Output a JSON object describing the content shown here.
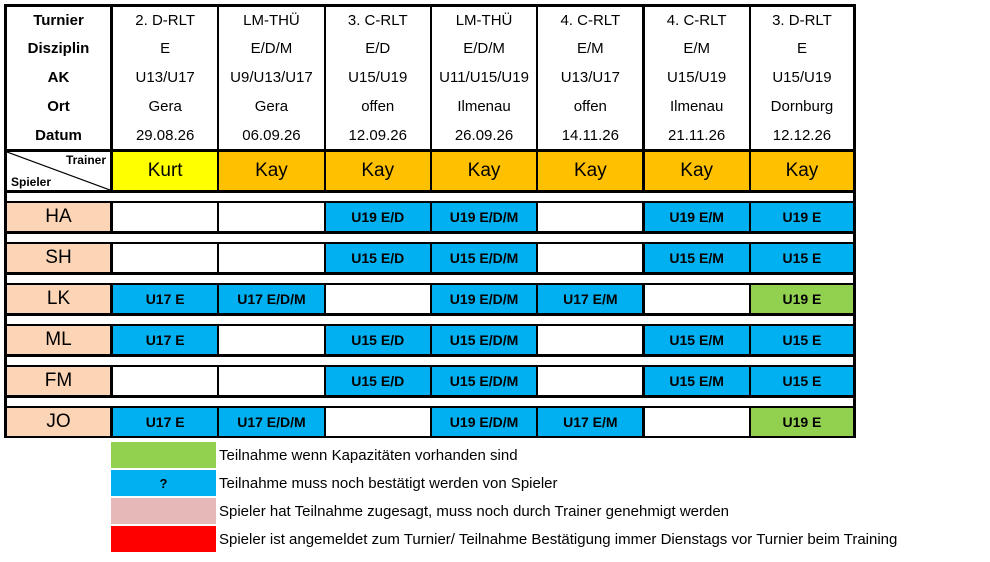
{
  "header_labels": [
    "Turnier",
    "Disziplin",
    "AK",
    "Ort",
    "Datum"
  ],
  "corner": {
    "top": "Trainer",
    "bottom": "Spieler"
  },
  "tournaments": [
    {
      "turnier": "2. D-RLT",
      "disziplin": "E",
      "ak": "U13/U17",
      "ort": "Gera",
      "datum": "29.08.26",
      "trainer": "Kurt"
    },
    {
      "turnier": "LM-THÜ",
      "disziplin": "E/D/M",
      "ak": "U9/U13/U17",
      "ort": "Gera",
      "datum": "06.09.26",
      "trainer": "Kay"
    },
    {
      "turnier": "3. C-RLT",
      "disziplin": "E/D",
      "ak": "U15/U19",
      "ort": "offen",
      "datum": "12.09.26",
      "trainer": "Kay"
    },
    {
      "turnier": "LM-THÜ",
      "disziplin": "E/D/M",
      "ak": "U11/U15/U19",
      "ort": "Ilmenau",
      "datum": "26.09.26",
      "trainer": "Kay"
    },
    {
      "turnier": "4. C-RLT",
      "disziplin": "E/M",
      "ak": "U13/U17",
      "ort": "offen",
      "datum": "14.11.26",
      "trainer": "Kay"
    },
    {
      "turnier": "4. C-RLT",
      "disziplin": "E/M",
      "ak": "U15/U19",
      "ort": "Ilmenau",
      "datum": "21.11.26",
      "trainer": "Kay"
    },
    {
      "turnier": "3. D-RLT",
      "disziplin": "E",
      "ak": "U15/U19",
      "ort": "Dornburg",
      "datum": "12.12.26",
      "trainer": "Kay"
    }
  ],
  "players": [
    {
      "name": "HA",
      "cells": [
        {
          "text": "",
          "status": "none"
        },
        {
          "text": "",
          "status": "none"
        },
        {
          "text": "U19 E/D",
          "status": "blue"
        },
        {
          "text": "U19 E/D/M",
          "status": "blue"
        },
        {
          "text": "",
          "status": "none"
        },
        {
          "text": "U19 E/M",
          "status": "blue"
        },
        {
          "text": "U19 E",
          "status": "blue"
        }
      ]
    },
    {
      "name": "SH",
      "cells": [
        {
          "text": "",
          "status": "none"
        },
        {
          "text": "",
          "status": "none"
        },
        {
          "text": "U15 E/D",
          "status": "blue"
        },
        {
          "text": "U15 E/D/M",
          "status": "blue"
        },
        {
          "text": "",
          "status": "none"
        },
        {
          "text": "U15 E/M",
          "status": "blue"
        },
        {
          "text": "U15 E",
          "status": "blue"
        }
      ]
    },
    {
      "name": "LK",
      "cells": [
        {
          "text": "U17 E",
          "status": "blue"
        },
        {
          "text": "U17 E/D/M",
          "status": "blue"
        },
        {
          "text": "",
          "status": "none"
        },
        {
          "text": "U19 E/D/M",
          "status": "blue"
        },
        {
          "text": "U17 E/M",
          "status": "blue"
        },
        {
          "text": "",
          "status": "none"
        },
        {
          "text": "U19 E",
          "status": "green"
        }
      ]
    },
    {
      "name": "ML",
      "cells": [
        {
          "text": "U17 E",
          "status": "blue"
        },
        {
          "text": "",
          "status": "none"
        },
        {
          "text": "U15 E/D",
          "status": "blue"
        },
        {
          "text": "U15 E/D/M",
          "status": "blue"
        },
        {
          "text": "",
          "status": "none"
        },
        {
          "text": "U15 E/M",
          "status": "blue"
        },
        {
          "text": "U15 E",
          "status": "blue"
        }
      ]
    },
    {
      "name": "FM",
      "cells": [
        {
          "text": "",
          "status": "none"
        },
        {
          "text": "",
          "status": "none"
        },
        {
          "text": "U15 E/D",
          "status": "blue"
        },
        {
          "text": "U15 E/D/M",
          "status": "blue"
        },
        {
          "text": "",
          "status": "none"
        },
        {
          "text": "U15 E/M",
          "status": "blue"
        },
        {
          "text": "U15 E",
          "status": "blue"
        }
      ]
    },
    {
      "name": "JO",
      "cells": [
        {
          "text": "U17 E",
          "status": "blue"
        },
        {
          "text": "U17 E/D/M",
          "status": "blue"
        },
        {
          "text": "",
          "status": "none"
        },
        {
          "text": "U19 E/D/M",
          "status": "blue"
        },
        {
          "text": "U17 E/M",
          "status": "blue"
        },
        {
          "text": "",
          "status": "none"
        },
        {
          "text": "U19 E",
          "status": "green"
        }
      ]
    }
  ],
  "legend": [
    {
      "swatch_text": "",
      "color": "#92D050",
      "text": "Teilnahme wenn Kapazitäten vorhanden sind"
    },
    {
      "swatch_text": "?",
      "color": "#00B0F0",
      "text": "Teilnahme muss noch bestätigt werden von Spieler"
    },
    {
      "swatch_text": "",
      "color": "#E6B9B8",
      "text": "Spieler hat Teilnahme zugesagt, muss noch durch Trainer genehmigt werden"
    },
    {
      "swatch_text": "",
      "color": "#FF0000",
      "text": "Spieler ist angemeldet zum Turnier/ Teilnahme Bestätigung immer Dienstags vor Turnier beim Training"
    }
  ],
  "colors": {
    "status_blue": "#00B0F0",
    "status_green": "#92D050",
    "trainer_kurt": "#FFFF00",
    "trainer_default": "#FFC000",
    "player_bg": "#FBD5B5",
    "border": "#000000"
  }
}
